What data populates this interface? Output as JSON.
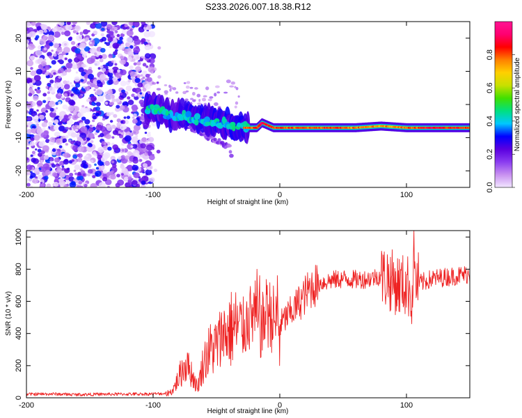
{
  "title": "S233.2026.007.18.38.R12",
  "chart_data": [
    {
      "type": "heatmap",
      "name": "spectrogram",
      "xlabel": "Height of straight line (km)",
      "ylabel": "Frequency (Hz)",
      "xlim": [
        -200,
        150
      ],
      "ylim": [
        -25,
        25
      ],
      "x_ticks": [
        "-200",
        "-100",
        "0",
        "100"
      ],
      "x_tick_values": [
        -200,
        -100,
        0,
        100
      ],
      "y_ticks": [
        "20",
        "10",
        "0",
        "-10",
        "-20"
      ],
      "y_tick_values": [
        20,
        10,
        0,
        -10,
        -20
      ],
      "colorbar": {
        "label": "Normalized spectral amplitude",
        "range": [
          0,
          1
        ],
        "ticks": [
          "0.0",
          "0.2",
          "0.4",
          "0.6",
          "0.8"
        ],
        "tick_values": [
          0.0,
          0.2,
          0.4,
          0.6,
          0.8
        ],
        "colors": [
          "#f2e6ff",
          "#c890f0",
          "#8a3cf0",
          "#5a00e0",
          "#0000ff",
          "#00c8ff",
          "#00e080",
          "#40e000",
          "#c8e000",
          "#ffd000",
          "#ff8000",
          "#ff0000",
          "#ff0070",
          "#ff1493"
        ]
      },
      "features": {
        "noise_region_x": [
          -200,
          -100
        ],
        "noise_region_y": [
          -25,
          25
        ],
        "signal_track": {
          "x": [
            -105,
            -95,
            -85,
            -75,
            -65,
            -55,
            -45,
            -35,
            -28,
            -18,
            -14,
            -5,
            0,
            20,
            40,
            60,
            80,
            100,
            120,
            150
          ],
          "y": [
            -1,
            -2,
            -3.5,
            -3.5,
            -4.5,
            -5,
            -5.5,
            -6.5,
            -7,
            -7,
            -5.5,
            -7,
            -7,
            -7,
            -7,
            -7,
            -6.5,
            -7,
            -7,
            -7
          ],
          "amplitude": [
            0.35,
            0.45,
            0.4,
            0.45,
            0.4,
            0.5,
            0.5,
            0.6,
            0.85,
            0.9,
            0.95,
            0.9,
            0.9,
            0.85,
            0.9,
            0.85,
            0.8,
            0.85,
            0.95,
            0.9
          ]
        },
        "secondary_trail": {
          "x": [
            -75,
            -65,
            -55,
            -45,
            -40,
            -38
          ],
          "y": [
            -6,
            -8,
            -10,
            -12,
            -13,
            -15
          ]
        }
      }
    },
    {
      "type": "line",
      "name": "snr",
      "xlabel": "Height of straight line (km)",
      "ylabel": "SNR (10 * v/v)",
      "xlim": [
        -200,
        150
      ],
      "ylim": [
        0,
        1040
      ],
      "x_ticks": [
        "-200",
        "-100",
        "0",
        "100"
      ],
      "x_tick_values": [
        -200,
        -100,
        0,
        100
      ],
      "y_ticks": [
        "0",
        "200",
        "400",
        "600",
        "800",
        "1000"
      ],
      "y_tick_values": [
        0,
        200,
        400,
        600,
        800,
        1000
      ],
      "line_color": "#ee2222",
      "series": [
        {
          "name": "SNR",
          "x": [
            -200,
            -180,
            -160,
            -140,
            -120,
            -100,
            -90,
            -85,
            -80,
            -75,
            -70,
            -65,
            -60,
            -55,
            -50,
            -45,
            -40,
            -35,
            -30,
            -25,
            -20,
            -15,
            -10,
            -5,
            0,
            5,
            10,
            15,
            20,
            25,
            30,
            40,
            50,
            60,
            70,
            80,
            85,
            90,
            95,
            100,
            104,
            106,
            110,
            120,
            130,
            140,
            150
          ],
          "y": [
            20,
            22,
            18,
            20,
            21,
            22,
            25,
            40,
            120,
            210,
            160,
            60,
            230,
            300,
            320,
            380,
            420,
            440,
            420,
            480,
            520,
            420,
            540,
            490,
            450,
            500,
            540,
            590,
            640,
            690,
            710,
            730,
            740,
            735,
            740,
            760,
            740,
            720,
            700,
            700,
            680,
            740,
            710,
            740,
            750,
            760,
            770
          ],
          "spikes": {
            "x": [
              -73,
              -45,
              -25,
              -18,
              -16,
              -10,
              -2,
              0,
              85,
              92,
              104,
              106
            ],
            "y": [
              280,
              450,
              560,
              800,
              760,
              700,
              760,
              200,
              890,
              540,
              460,
              1040
            ]
          }
        }
      ]
    }
  ]
}
